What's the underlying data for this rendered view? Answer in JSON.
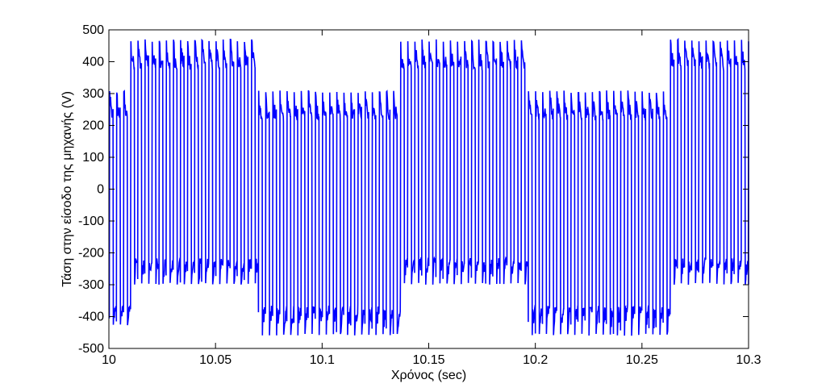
{
  "chart_data": {
    "type": "line",
    "title": "",
    "xlabel": "Χρόνος (sec)",
    "ylabel": "Τάση στην είσοδο της μηχανής (V)",
    "xlim": [
      10,
      10.3
    ],
    "ylim": [
      -500,
      500
    ],
    "grid": false,
    "x_ticks": [
      10,
      10.05,
      10.1,
      10.15,
      10.2,
      10.25,
      10.3
    ],
    "x_tick_labels": [
      "10",
      "10.05",
      "10.1",
      "10.15",
      "10.2",
      "10.25",
      "10.3"
    ],
    "y_ticks": [
      -500,
      -400,
      -300,
      -200,
      -100,
      0,
      100,
      200,
      300,
      400,
      500
    ],
    "y_tick_labels": [
      "-500",
      "-400",
      "-300",
      "-200",
      "-100",
      "0",
      "100",
      "200",
      "300",
      "400",
      "500"
    ],
    "series": [
      {
        "color": "#0000ff",
        "pwm_period_s": 0.00333,
        "fundamental_period_s": 0.1266,
        "fundamental_phase_s": 10.0075,
        "levels": {
          "pos_high": [
            370,
            470
          ],
          "pos_low": [
            210,
            310
          ],
          "neg_high": [
            -210,
            -300
          ],
          "neg_low": [
            -360,
            -460
          ]
        },
        "segments": [
          {
            "start": 10.0,
            "end": 10.0075,
            "positive": [
              210,
              310
            ],
            "negative": [
              -360,
              -430
            ]
          },
          {
            "start": 10.0075,
            "end": 10.07,
            "positive": [
              370,
              470
            ],
            "negative": [
              -210,
              -300
            ]
          },
          {
            "start": 10.07,
            "end": 10.134,
            "positive": [
              210,
              310
            ],
            "negative": [
              -360,
              -460
            ]
          },
          {
            "start": 10.134,
            "end": 10.196,
            "positive": [
              370,
              470
            ],
            "negative": [
              -210,
              -300
            ]
          },
          {
            "start": 10.196,
            "end": 10.26,
            "positive": [
              210,
              310
            ],
            "negative": [
              -360,
              -460
            ]
          },
          {
            "start": 10.26,
            "end": 10.3,
            "positive": [
              370,
              470
            ],
            "negative": [
              -210,
              -300
            ]
          }
        ]
      }
    ]
  }
}
